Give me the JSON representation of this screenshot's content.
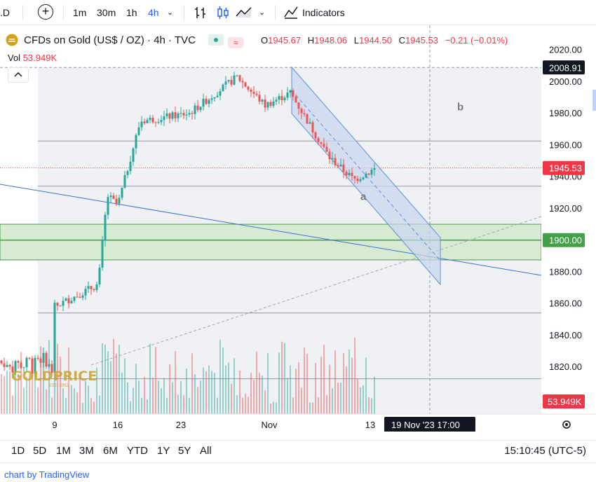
{
  "toolbar": {
    "symbol_fragment": ".D",
    "add_symbol": "+",
    "intervals": [
      "1m",
      "30m",
      "1h",
      "4h"
    ],
    "active_interval": "4h",
    "indicators_label": "Indicators"
  },
  "legend": {
    "symbol": "CFDs on Gold (US$ / OZ) · 4h · TVC",
    "open_label": "O",
    "open": "1945.67",
    "high_label": "H",
    "high": "1948.06",
    "low_label": "L",
    "low": "1944.50",
    "close_label": "C",
    "close": "1945.53",
    "change": "−0.21 (−0.01%)",
    "volume_label": "Vol",
    "volume": "53.949K"
  },
  "watermark": {
    "text": "GOLDPRICE",
    "subtext": "EST. 2002"
  },
  "crosshair_time_label": "19 Nov '23   17:00",
  "range_buttons": [
    "1D",
    "5D",
    "1M",
    "3M",
    "6M",
    "YTD",
    "1Y",
    "5Y",
    "All"
  ],
  "clock": "15:10:45 (UTC-5)",
  "attribution": "chart by TradingView",
  "colors": {
    "up": "#26a69a",
    "down": "#ef5350",
    "zone_fill": "#d7ebd3",
    "zone_line": "#43a047",
    "channel_fill": "#c9d6ee",
    "channel_line": "#5b8fd9",
    "trendline": "#3d6fd6",
    "price_tag": "#f23645"
  },
  "chart_data": {
    "type": "candlestick",
    "price_range": [
      1800,
      2025
    ],
    "y_ticks": [
      "2020.00",
      "2000.00",
      "1980.00",
      "1960.00",
      "1940.00",
      "1920.00",
      "1900.00",
      "1880.00",
      "1860.00",
      "1840.00",
      "1820.00"
    ],
    "x_ticks": [
      "9",
      "16",
      "23",
      "Nov",
      "13"
    ],
    "last_price": 1945.53,
    "last_volume": "53.949K",
    "crosshair_price": 2008.91,
    "horizontal_levels": [
      1962.5,
      1934.0,
      1854.0,
      1812.5
    ],
    "support_zone": {
      "low": 1887.5,
      "high": 1910.0,
      "mid": 1900.0
    },
    "wave_labels": [
      {
        "text": "a",
        "price": 1928
      },
      {
        "text": "b",
        "price": 1984
      }
    ],
    "series": [
      {
        "name": "CFDs on Gold (US$ / OZ)",
        "anchors": [
          {
            "t": "Oct 9",
            "price": 1858
          },
          {
            "t": "Oct 13",
            "price": 1872
          },
          {
            "t": "Oct 14",
            "price": 1928
          },
          {
            "t": "Oct 16",
            "price": 1922
          },
          {
            "t": "Oct 19",
            "price": 1975
          },
          {
            "t": "Oct 25",
            "price": 1980
          },
          {
            "t": "Oct 27",
            "price": 2003
          },
          {
            "t": "Oct 31",
            "price": 1985
          },
          {
            "t": "Nov 3",
            "price": 1993
          },
          {
            "t": "Nov 8",
            "price": 1952
          },
          {
            "t": "Nov 10",
            "price": 1938
          },
          {
            "t": "Nov 13",
            "price": 1945.53
          }
        ]
      }
    ]
  }
}
